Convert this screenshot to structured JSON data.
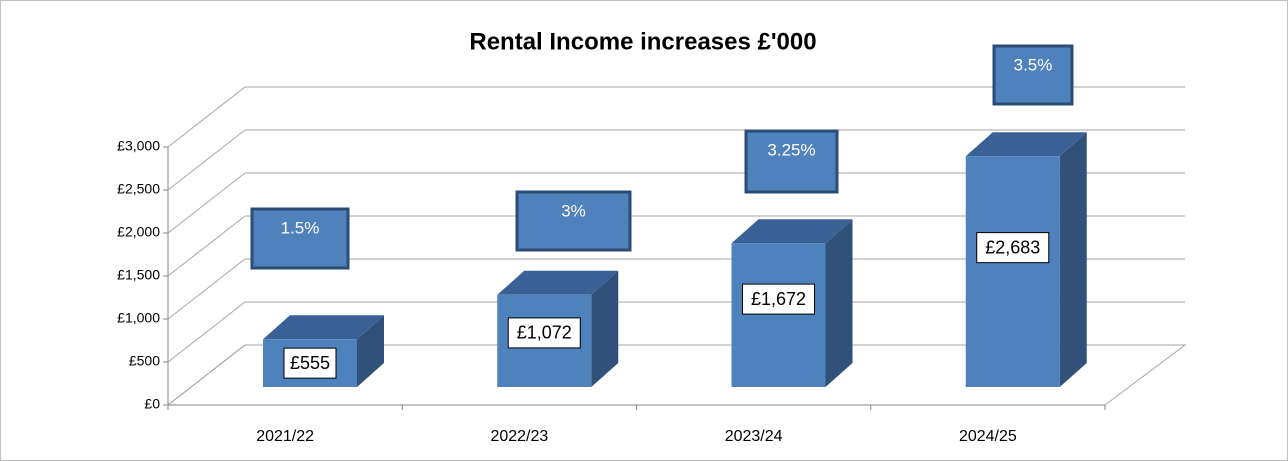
{
  "chart_data": {
    "type": "bar3d",
    "title": "Rental Income increases £'000",
    "categories": [
      "2021/22",
      "2022/23",
      "2023/24",
      "2024/25"
    ],
    "values": [
      555,
      1072,
      1672,
      2683
    ],
    "value_labels": [
      "£555",
      "£1,072",
      "£1,672",
      "£2,683"
    ],
    "color": "#4f81bd",
    "annotations": [
      "1.5%",
      "3%",
      "3.25%",
      "3.5%"
    ],
    "ylim": [
      0,
      3000
    ],
    "yticks": [
      {
        "value": 0,
        "label": "£0"
      },
      {
        "value": 500,
        "label": "£500"
      },
      {
        "value": 1000,
        "label": "£1,000"
      },
      {
        "value": 1500,
        "label": "£1,500"
      },
      {
        "value": 2000,
        "label": "£2,000"
      },
      {
        "value": 2500,
        "label": "£2,500"
      },
      {
        "value": 3000,
        "label": "£3,000"
      }
    ],
    "grid": true
  }
}
